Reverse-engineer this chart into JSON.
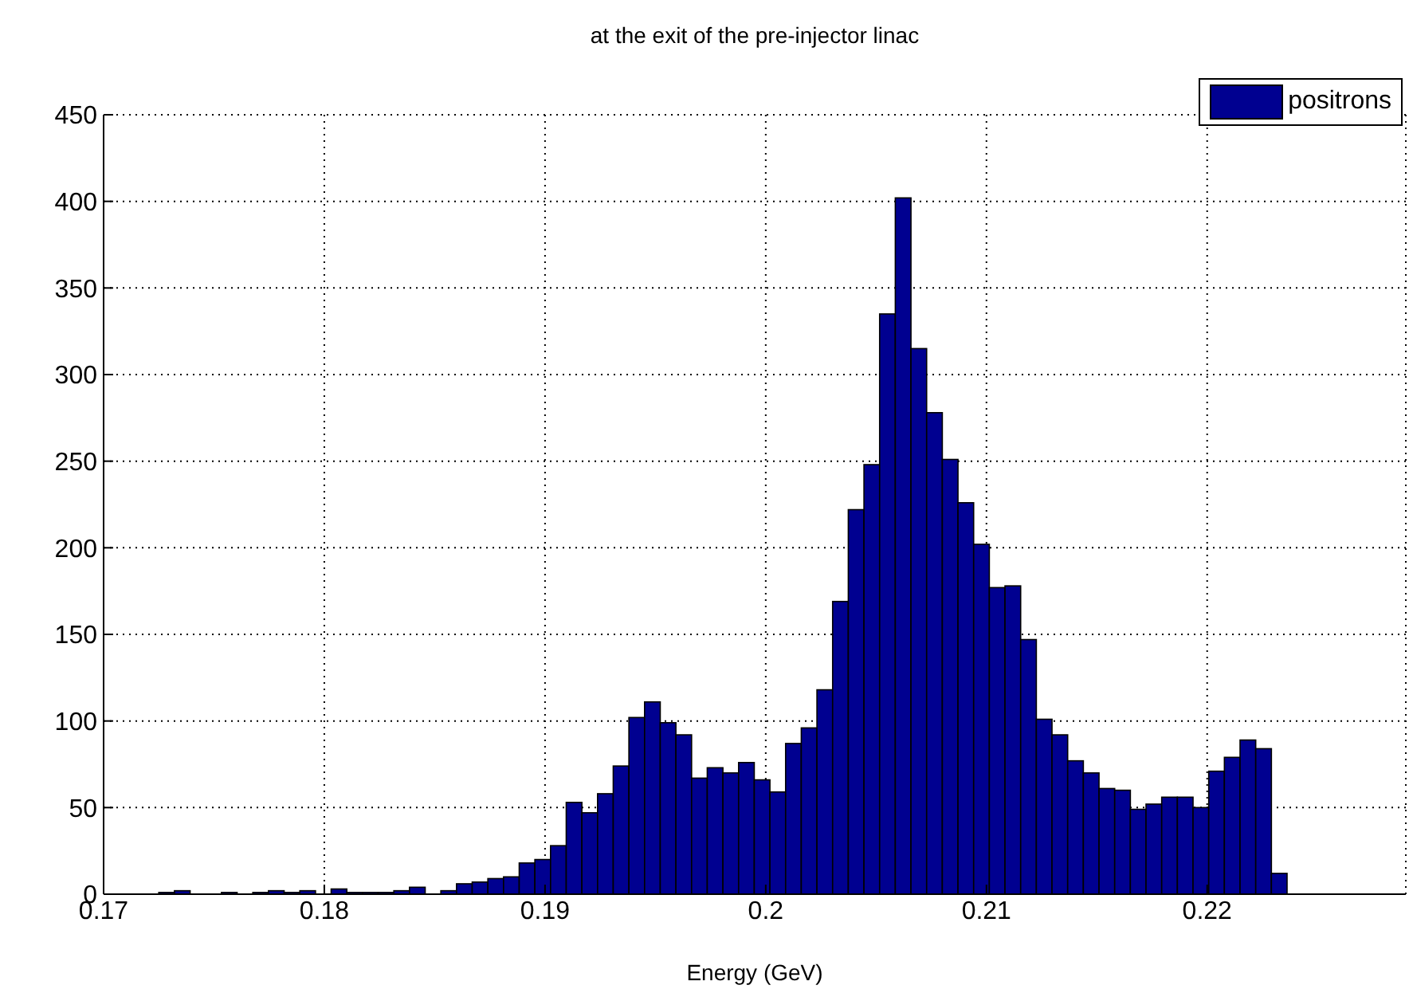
{
  "chart_data": {
    "type": "histogram",
    "title": "at the exit of the pre-injector linac",
    "xlabel": "Energy (GeV)",
    "bins": [
      0.1725,
      0.17321,
      0.17392,
      0.17463,
      0.17534,
      0.17605,
      0.17676,
      0.17747,
      0.17818,
      0.17889,
      0.1796,
      0.18031,
      0.18102,
      0.18173,
      0.18244,
      0.18315,
      0.18386,
      0.18457,
      0.18528,
      0.18599,
      0.1867,
      0.18741,
      0.18812,
      0.18883,
      0.18954,
      0.19025,
      0.19096,
      0.19167,
      0.19238,
      0.19309,
      0.1938,
      0.19451,
      0.19522,
      0.19593,
      0.19664,
      0.19735,
      0.19806,
      0.19877,
      0.19948,
      0.20019,
      0.2009,
      0.20161,
      0.20232,
      0.20303,
      0.20374,
      0.20445,
      0.20516,
      0.20587,
      0.20658,
      0.20729,
      0.208,
      0.20871,
      0.20942,
      0.21013,
      0.21084,
      0.21155,
      0.21226,
      0.21297,
      0.21368,
      0.21439,
      0.2151,
      0.21581,
      0.21652,
      0.21723,
      0.21794,
      0.21865,
      0.21936,
      0.22007,
      0.22078,
      0.22149,
      0.2222,
      0.22291,
      0.22362
    ],
    "series": [
      {
        "name": "positrons",
        "color": "#000090",
        "values": [
          1,
          2,
          0,
          0,
          1,
          0,
          1,
          2,
          1,
          2,
          0,
          3,
          1,
          1,
          1,
          2,
          4,
          0,
          2,
          6,
          7,
          9,
          10,
          18,
          20,
          28,
          53,
          47,
          58,
          74,
          102,
          111,
          99,
          92,
          67,
          73,
          70,
          76,
          66,
          59,
          87,
          96,
          118,
          169,
          222,
          248,
          335,
          402,
          315,
          278,
          251,
          226,
          202,
          177,
          178,
          147,
          101,
          92,
          77,
          70,
          61,
          60,
          49,
          52,
          56,
          56,
          50,
          71,
          79,
          89,
          84,
          12
        ]
      }
    ],
    "xlim": [
      0.17,
      0.229
    ],
    "xticks": [
      {
        "value": 0.17,
        "label": "0.17"
      },
      {
        "value": 0.18,
        "label": "0.18"
      },
      {
        "value": 0.19,
        "label": "0.19"
      },
      {
        "value": 0.2,
        "label": "0.2"
      },
      {
        "value": 0.21,
        "label": "0.21"
      },
      {
        "value": 0.22,
        "label": "0.22"
      }
    ],
    "ylim": [
      0,
      450
    ],
    "yticks": [
      0,
      50,
      100,
      150,
      200,
      250,
      300,
      350,
      400,
      450
    ],
    "grid": true,
    "legend": "top right"
  }
}
